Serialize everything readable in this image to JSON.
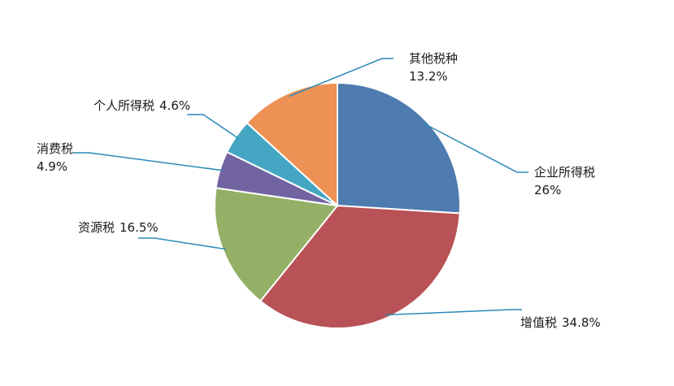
{
  "chart_data": {
    "type": "pie",
    "categories": [
      "企业所得税",
      "增值税",
      "资源税",
      "消费税",
      "个人所得税",
      "其他税种"
    ],
    "values": [
      26,
      34.8,
      16.5,
      4.9,
      4.6,
      13.2
    ],
    "value_labels": [
      "26%",
      "34.8%",
      "16.5%",
      "4.9%",
      "4.6%",
      "13.2%"
    ],
    "colors": [
      "#4e7bb0",
      "#b85256",
      "#93b066",
      "#7264a0",
      "#44a6c2",
      "#ee9155"
    ],
    "start_angle": "top",
    "direction": "clockwise"
  }
}
